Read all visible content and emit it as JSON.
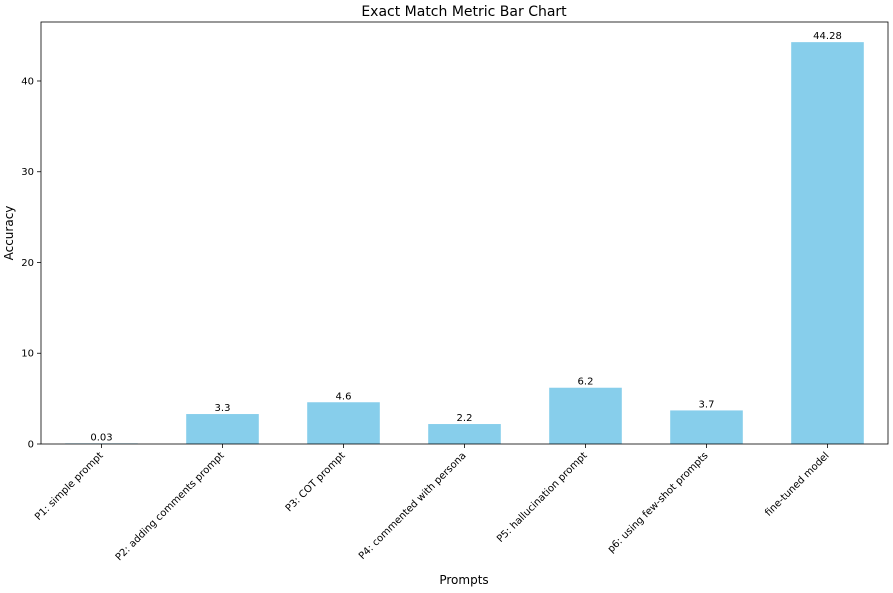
{
  "chart_data": {
    "type": "bar",
    "title": "Exact Match Metric Bar Chart",
    "xlabel": "Prompts",
    "ylabel": "Accuracy",
    "categories": [
      "P1: simple prompt",
      "P2: adding comments prompt",
      "P3: COT prompt",
      "P4: commented with persona",
      "P5: hallucination prompt",
      "p6: using few-shot prompts",
      "fine-tuned model"
    ],
    "values": [
      0.03,
      3.3,
      4.6,
      2.2,
      6.2,
      3.7,
      44.28
    ],
    "value_labels": [
      "0.03",
      "3.3",
      "4.6",
      "2.2",
      "6.2",
      "3.7",
      "44.28"
    ],
    "ylim": [
      0,
      46.5
    ],
    "yticks": [
      0,
      10,
      20,
      30,
      40
    ],
    "grid": false,
    "bar_color": "#87CEEB"
  }
}
